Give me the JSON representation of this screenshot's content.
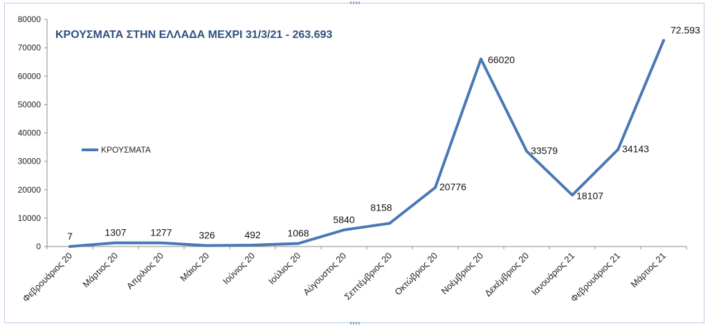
{
  "chart_data": {
    "type": "line",
    "title": "ΚΡΟΥΣΜΑΤΑ ΣΤΗΝ ΕΛΛΑΔΑ ΜΕΧΡΙ 31/3/21 - 263.693",
    "xlabel": "",
    "ylabel": "",
    "ylim": [
      0,
      80000
    ],
    "yticks": [
      "0",
      "10000",
      "20000",
      "30000",
      "40000",
      "50000",
      "60000",
      "70000",
      "80000"
    ],
    "grid": false,
    "legend_position": "left",
    "categories": [
      "Φεβρουάριος 20",
      "Μάρτιος 20",
      "Απριλιος 20",
      "Μάιος 20",
      "Ιούνιος 20",
      "Ιούλιος 20",
      "Αύγουστος 20",
      "Σεπτέμβριος 20",
      "Οκτώβριος 20",
      "Νοέμβριος 20",
      "Δεκέμβριος 20",
      "Ιανουάριος 21",
      "Φεβρουάριος 21",
      "Μάρτιος 21"
    ],
    "series": [
      {
        "name": "ΚΡΟΥΣΜΑΤΑ",
        "color": "#4a78b4",
        "values": [
          7,
          1307,
          1277,
          326,
          492,
          1068,
          5840,
          8158,
          20776,
          66020,
          33579,
          18107,
          34143,
          72593
        ],
        "labels": [
          "7",
          "1307",
          "1277",
          "326",
          "492",
          "1068",
          "5840",
          "8158",
          "20776",
          "66020",
          "33579",
          "18107",
          "34143",
          "72.593"
        ]
      }
    ]
  }
}
